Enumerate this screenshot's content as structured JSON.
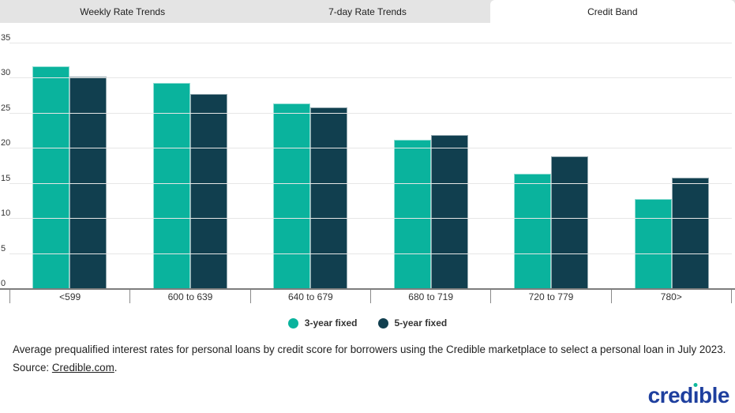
{
  "tabs": [
    {
      "label": "Weekly Rate Trends",
      "active": false
    },
    {
      "label": "7-day Rate Trends",
      "active": false
    },
    {
      "label": "Credit Band",
      "active": true
    }
  ],
  "chart_data": {
    "type": "bar",
    "title": "",
    "categories": [
      "<599",
      "600 to 639",
      "640 to 679",
      "680 to 719",
      "720 to 779",
      "780>"
    ],
    "series": [
      {
        "name": "3-year fixed",
        "color": "#0ab39d",
        "values": [
          31.7,
          29.4,
          26.4,
          21.3,
          16.4,
          12.8
        ]
      },
      {
        "name": "5-year fixed",
        "color": "#113f4f",
        "values": [
          30.3,
          27.8,
          25.9,
          22.0,
          18.9,
          15.9
        ]
      }
    ],
    "ylim": [
      0,
      35
    ],
    "yticks": [
      0,
      5,
      10,
      15,
      20,
      25,
      30,
      35
    ],
    "xlabel": "",
    "ylabel": "",
    "grid": true,
    "legend_position": "bottom"
  },
  "caption": {
    "line1": "Average prequalified interest rates for personal loans by credit score for borrowers using the Credible marketplace to select a personal loan in July 2023.",
    "source_prefix": "Source: ",
    "source_link": "Credible.com",
    "source_suffix": "."
  },
  "logo": {
    "text": "credible",
    "blue": "#1e3f9e",
    "dot_teal": "#10b99c"
  }
}
